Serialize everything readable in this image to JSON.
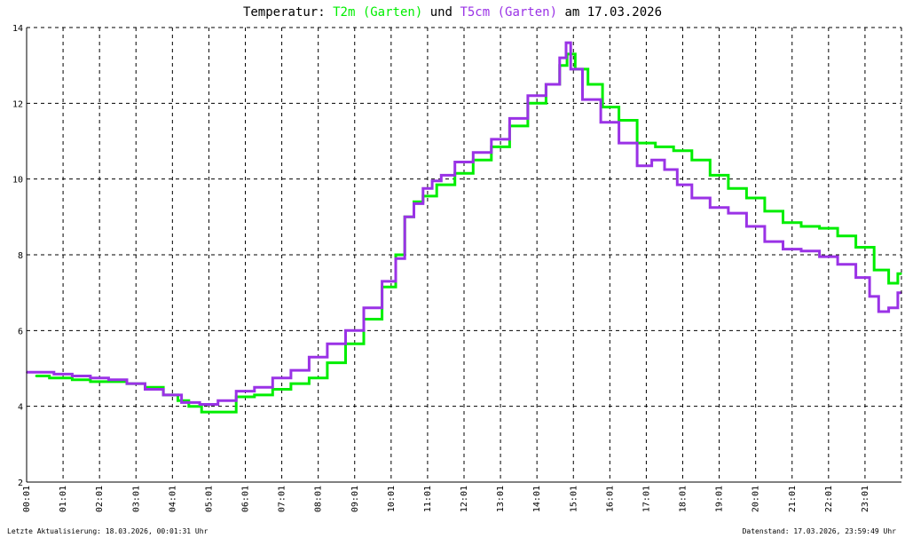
{
  "title": {
    "prefix": "Temperatur:",
    "series1": "T2m (Garten)",
    "joiner": "und",
    "series2": "T5cm (Garten)",
    "suffix": "am 17.03.2026"
  },
  "footer": {
    "left": "Letzte Aktualisierung: 18.03.2026, 00:01:31 Uhr",
    "right": "Datenstand: 17.03.2026, 23:59:49 Uhr"
  },
  "colors": {
    "T2m": "#00ee00",
    "T5cm": "#9a32e6",
    "grid": "#000000",
    "background": "#ffffff"
  },
  "chart_data": {
    "type": "line",
    "title": "Temperatur: T2m (Garten) und T5cm (Garten) am 17.03.2026",
    "xlabel": "",
    "ylabel": "",
    "xlim": [
      0,
      24
    ],
    "ylim": [
      2,
      14
    ],
    "grid": true,
    "x_tick_labels": [
      "00:01",
      "01:01",
      "02:01",
      "03:01",
      "04:01",
      "05:01",
      "06:01",
      "07:01",
      "08:01",
      "09:01",
      "10:01",
      "11:01",
      "12:01",
      "13:01",
      "14:01",
      "15:01",
      "16:01",
      "17:01",
      "18:01",
      "19:01",
      "20:01",
      "21:01",
      "22:01",
      "23:01"
    ],
    "y_ticks": [
      2,
      4,
      6,
      8,
      10,
      12,
      14
    ],
    "series": [
      {
        "name": "T2m (Garten)",
        "color": "#00ee00",
        "x": [
          0.25,
          0.5,
          0.75,
          1.0,
          1.5,
          2.0,
          2.5,
          3.0,
          3.5,
          4.0,
          4.3,
          4.6,
          5.0,
          5.5,
          6.0,
          6.5,
          7.0,
          7.5,
          8.0,
          8.5,
          9.0,
          9.5,
          10.0,
          10.25,
          10.5,
          10.75,
          11.0,
          11.5,
          12.0,
          12.5,
          13.0,
          13.5,
          14.0,
          14.5,
          14.75,
          14.9,
          15.2,
          15.6,
          16.0,
          16.5,
          17.0,
          17.5,
          18.0,
          18.5,
          19.0,
          19.5,
          20.0,
          20.5,
          21.0,
          21.5,
          22.0,
          22.5,
          23.0,
          23.5,
          23.8,
          24.0
        ],
        "values": [
          4.8,
          4.8,
          4.75,
          4.75,
          4.7,
          4.65,
          4.65,
          4.6,
          4.5,
          4.3,
          4.15,
          4.0,
          3.85,
          3.85,
          4.25,
          4.3,
          4.45,
          4.6,
          4.75,
          5.15,
          5.65,
          6.3,
          7.15,
          8.0,
          9.0,
          9.4,
          9.55,
          9.85,
          10.15,
          10.5,
          10.85,
          11.4,
          12.0,
          12.5,
          13.0,
          13.3,
          12.9,
          12.5,
          11.9,
          11.55,
          10.95,
          10.85,
          10.75,
          10.5,
          10.1,
          9.75,
          9.5,
          9.15,
          8.85,
          8.75,
          8.7,
          8.5,
          8.2,
          7.6,
          7.25,
          7.5
        ]
      },
      {
        "name": "T5cm (Garten)",
        "color": "#9a32e6",
        "x": [
          0.0,
          0.5,
          1.0,
          1.5,
          2.0,
          2.5,
          3.0,
          3.5,
          4.0,
          4.5,
          5.0,
          5.5,
          6.0,
          6.5,
          7.0,
          7.5,
          8.0,
          8.5,
          9.0,
          9.5,
          10.0,
          10.25,
          10.5,
          10.75,
          11.0,
          11.25,
          11.5,
          12.0,
          12.5,
          13.0,
          13.5,
          14.0,
          14.5,
          14.75,
          14.85,
          15.0,
          15.5,
          16.0,
          16.5,
          17.0,
          17.3,
          17.7,
          18.0,
          18.5,
          19.0,
          19.5,
          20.0,
          20.5,
          21.0,
          21.5,
          22.0,
          22.5,
          23.0,
          23.25,
          23.5,
          23.8,
          24.0
        ],
        "values": [
          4.9,
          4.9,
          4.85,
          4.8,
          4.75,
          4.7,
          4.6,
          4.45,
          4.3,
          4.1,
          4.05,
          4.15,
          4.4,
          4.5,
          4.75,
          4.95,
          5.3,
          5.65,
          6.0,
          6.6,
          7.3,
          7.9,
          9.0,
          9.35,
          9.75,
          9.95,
          10.1,
          10.45,
          10.7,
          11.05,
          11.6,
          12.2,
          12.5,
          13.2,
          13.6,
          12.9,
          12.1,
          11.5,
          10.95,
          10.35,
          10.5,
          10.25,
          9.85,
          9.5,
          9.25,
          9.1,
          8.75,
          8.35,
          8.15,
          8.1,
          7.95,
          7.75,
          7.4,
          6.9,
          6.5,
          6.6,
          7.0
        ]
      }
    ]
  }
}
